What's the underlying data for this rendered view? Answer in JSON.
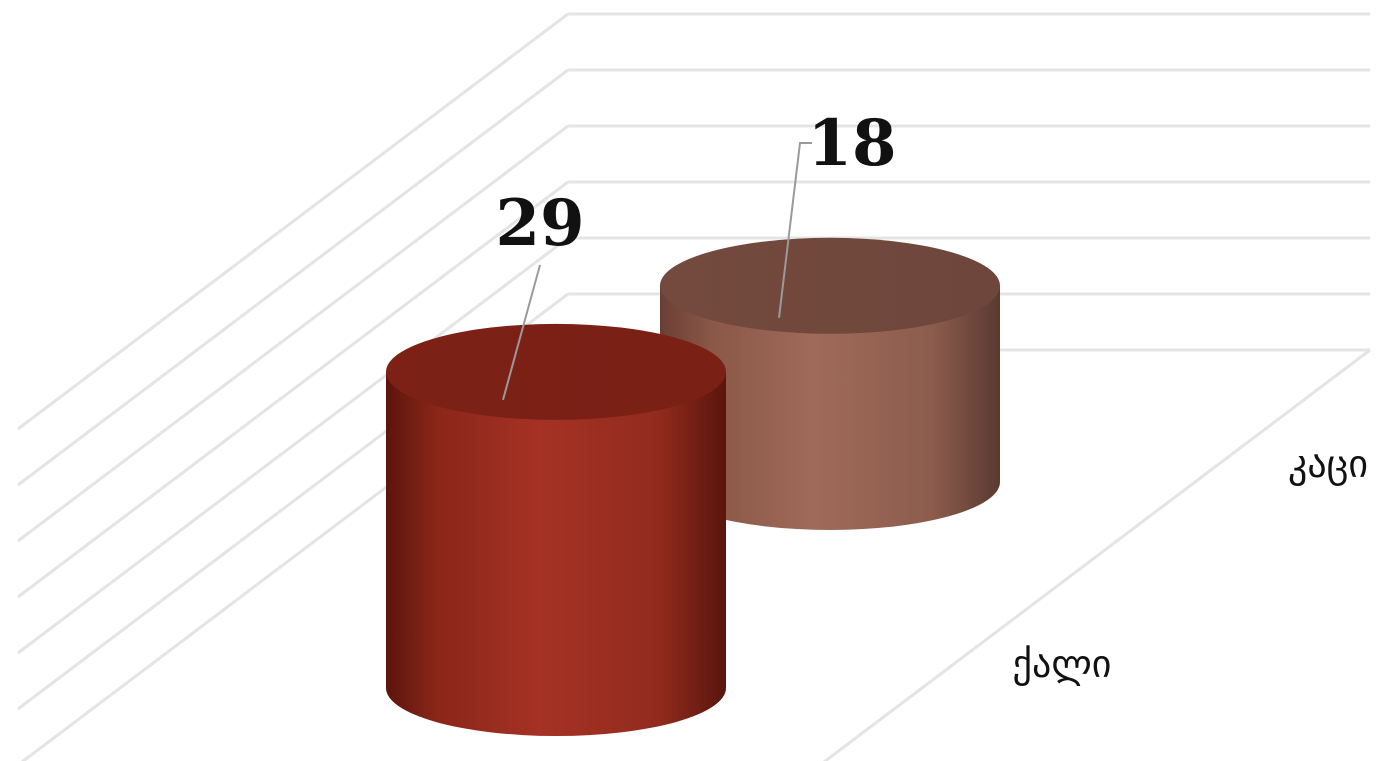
{
  "chart_data": {
    "type": "bar",
    "subtype": "3d-cylinder",
    "categories": [
      "ქალი",
      "კაცი"
    ],
    "values": [
      29,
      18
    ],
    "colors": [
      "#a23224",
      "#9e6858"
    ],
    "gridlines": true,
    "legend": "none",
    "data_labels": true
  }
}
